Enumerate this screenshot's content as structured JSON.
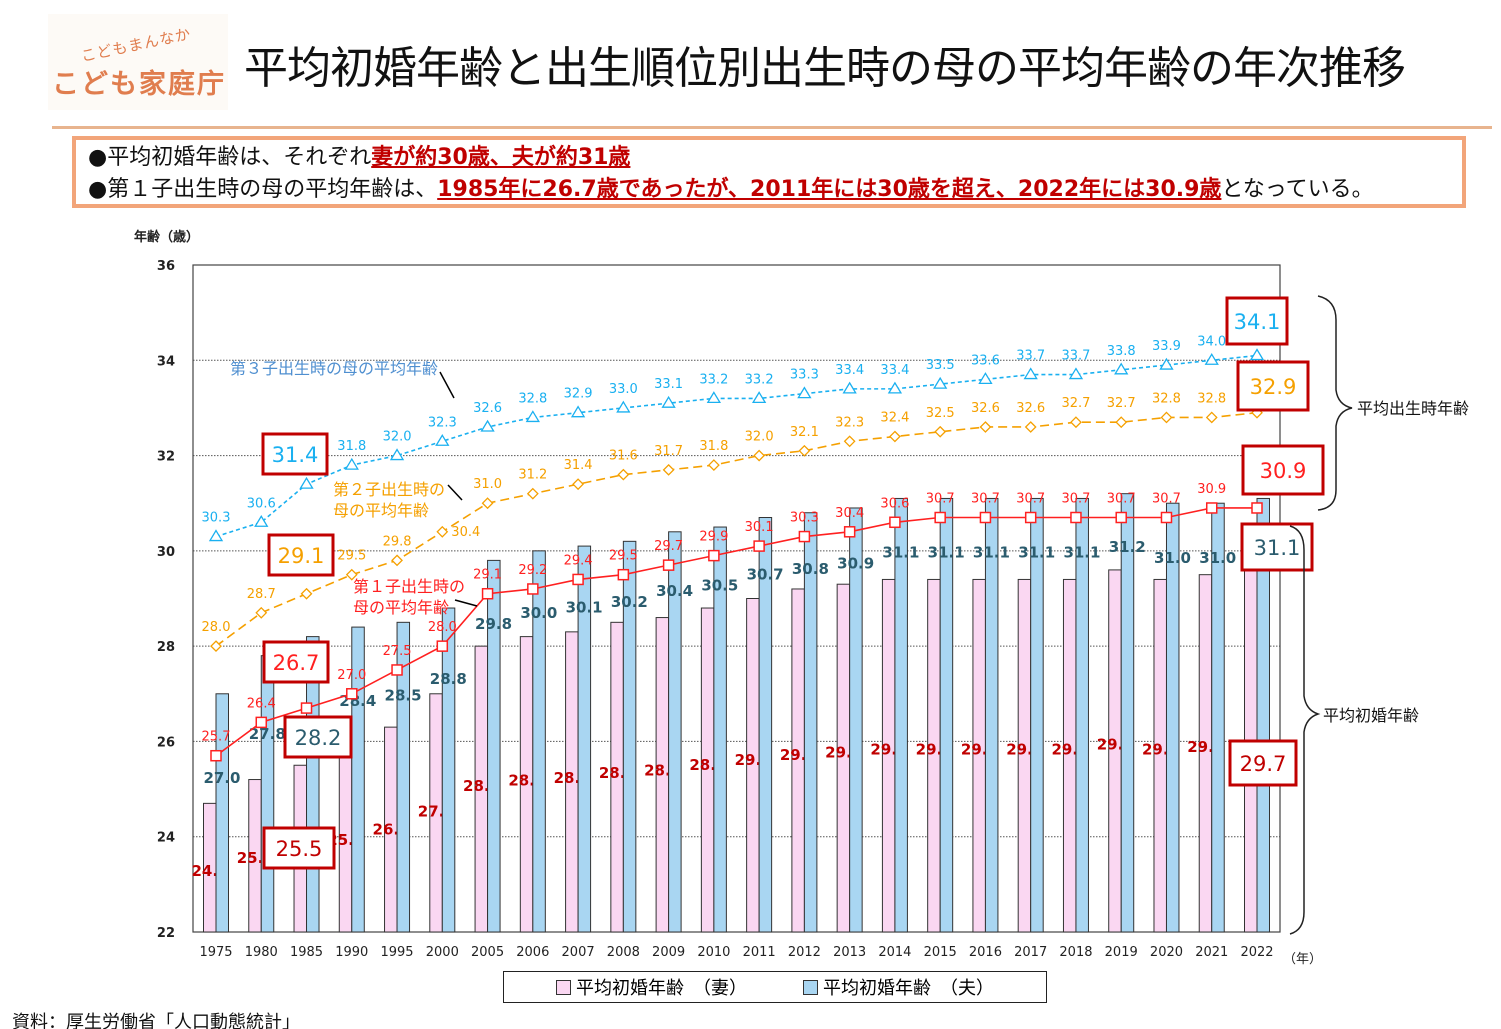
{
  "logo": {
    "tagline": "こどもまんなか",
    "name": "こども家庭庁"
  },
  "title": "平均初婚年齢と出生順位別出生時の母の平均年齢の年次推移",
  "summary": {
    "line1_prefix": "●平均初婚年齢は、それぞれ",
    "line1_emphasis": "妻が約30歳、夫が約31歳",
    "line2_prefix": "●第１子出生時の母の平均年齢は、",
    "line2_emphasis": "1985年に26.7歳であったが、2011年には30歳を超え、2022年には30.9歳",
    "line2_suffix": "となっている。"
  },
  "source": "資料：厚生労働省「人口動態統計」",
  "chart_data": {
    "type": "bar+line",
    "ylabel": "年齢（歳）",
    "xunit": "（年）",
    "ylim": [
      22,
      36
    ],
    "yticks": [
      22,
      24,
      26,
      28,
      30,
      32,
      34,
      36
    ],
    "grid": true,
    "legend_position": "bottom",
    "categories": [
      "1975",
      "1980",
      "1985",
      "1990",
      "1995",
      "2000",
      "2005",
      "2006",
      "2007",
      "2008",
      "2009",
      "2010",
      "2011",
      "2012",
      "2013",
      "2014",
      "2015",
      "2016",
      "2017",
      "2018",
      "2019",
      "2020",
      "2021",
      "2022"
    ],
    "bars": [
      {
        "name": "平均初婚年齢　（妻）",
        "color": "#fad7f2",
        "label_color": "#c00000",
        "values": [
          24.7,
          25.2,
          25.5,
          25.9,
          26.3,
          27.0,
          28.0,
          28.2,
          28.3,
          28.5,
          28.6,
          28.8,
          29.0,
          29.2,
          29.3,
          29.4,
          29.4,
          29.4,
          29.4,
          29.4,
          29.6,
          29.4,
          29.5,
          29.7
        ]
      },
      {
        "name": "平均初婚年齢　（夫）",
        "color": "#a9d6f2",
        "label_color": "#2b5c6e",
        "values": [
          27.0,
          27.8,
          28.2,
          28.4,
          28.5,
          28.8,
          29.8,
          30.0,
          30.1,
          30.2,
          30.4,
          30.5,
          30.7,
          30.8,
          30.9,
          31.1,
          31.1,
          31.1,
          31.1,
          31.1,
          31.2,
          31.0,
          31.0,
          31.1
        ]
      }
    ],
    "lines": [
      {
        "name": "第１子出生時の母の平均年齢",
        "color": "#ff2020",
        "marker": "square",
        "values": [
          25.7,
          26.4,
          26.7,
          27.0,
          27.5,
          28.0,
          29.1,
          29.2,
          29.4,
          29.5,
          29.7,
          29.9,
          30.1,
          30.3,
          30.4,
          30.6,
          30.7,
          30.7,
          30.7,
          30.7,
          30.7,
          30.7,
          30.9,
          30.9
        ]
      },
      {
        "name": "第２子出生時の母の平均年齢",
        "color": "#f5a000",
        "marker": "diamond",
        "values": [
          28.0,
          28.7,
          29.1,
          29.5,
          29.8,
          30.4,
          31.0,
          31.2,
          31.4,
          31.6,
          31.7,
          31.8,
          32.0,
          32.1,
          32.3,
          32.4,
          32.5,
          32.6,
          32.6,
          32.7,
          32.7,
          32.8,
          32.8,
          32.9
        ]
      },
      {
        "name": "第３子出生時の母の平均年齢",
        "color": "#1ab0f0",
        "marker": "triangle",
        "values": [
          30.3,
          30.6,
          31.4,
          31.8,
          32.0,
          32.3,
          32.6,
          32.8,
          32.9,
          33.0,
          33.1,
          33.2,
          33.2,
          33.3,
          33.4,
          33.4,
          33.5,
          33.6,
          33.7,
          33.7,
          33.8,
          33.9,
          34.0,
          34.1
        ]
      }
    ],
    "series_annotations": [
      {
        "lines": [
          "第３子出生時の母の平均年齢"
        ],
        "color": "#4f8fd0"
      },
      {
        "lines": [
          "第２子出生時の",
          "母の平均年齢"
        ],
        "color": "#f5a000"
      },
      {
        "lines": [
          "第１子出生時の",
          "母の平均年齢"
        ],
        "color": "#ff2020"
      }
    ],
    "callouts": [
      {
        "text": "31.4",
        "color": "#1ab0f0"
      },
      {
        "text": "29.1",
        "color": "#f5a000"
      },
      {
        "text": "26.7",
        "color": "#ff2020"
      },
      {
        "text": "28.2",
        "color": "#2b5c6e"
      },
      {
        "text": "25.5",
        "color": "#c00000"
      },
      {
        "text": "34.1",
        "color": "#1ab0f0"
      },
      {
        "text": "32.9",
        "color": "#f5a000"
      },
      {
        "text": "30.9",
        "color": "#ff2020"
      },
      {
        "text": "31.1",
        "color": "#2b5c6e"
      },
      {
        "text": "29.7",
        "color": "#c00000"
      }
    ],
    "brace_labels": [
      "平均出生時年齢",
      "平均初婚年齢"
    ]
  }
}
